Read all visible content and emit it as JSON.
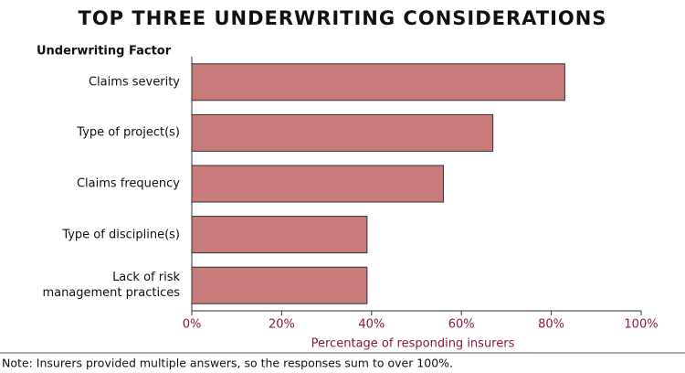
{
  "chart_data": {
    "type": "bar",
    "orientation": "horizontal",
    "title": "TOP THREE UNDERWRITING CONSIDERATIONS",
    "category_axis_title": "Underwriting Factor",
    "x_axis_title": "Percentage of responding insurers",
    "note": "Note:  Insurers provided multiple answers, so the responses sum to over 100%.",
    "categories": [
      "Claims severity",
      "Type of project(s)",
      "Claims frequency",
      "Type of discipline(s)",
      "Lack of risk\nmanagement practices"
    ],
    "values": [
      83,
      67,
      56,
      39,
      39
    ],
    "color": "#c97a7a",
    "xlim": [
      0,
      100
    ],
    "xticks": [
      {
        "value": 0,
        "label": "0%"
      },
      {
        "value": 20,
        "label": "20%"
      },
      {
        "value": 40,
        "label": "40%"
      },
      {
        "value": 60,
        "label": "60%"
      },
      {
        "value": 80,
        "label": "80%"
      },
      {
        "value": 100,
        "label": "100%"
      }
    ],
    "grid": false
  }
}
